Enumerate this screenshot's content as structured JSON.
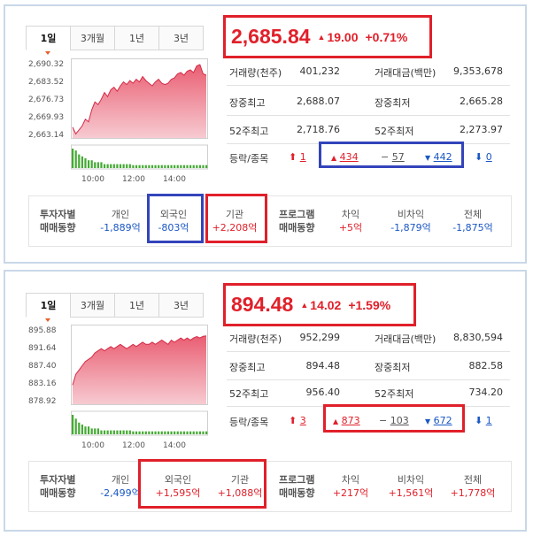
{
  "tabs": [
    "1일",
    "3개월",
    "1년",
    "3년"
  ],
  "panels": [
    {
      "price": "2,685.84",
      "change": "19.00",
      "change_pct": "+0.71%",
      "y_ticks": [
        "2,690.32",
        "2,683.52",
        "2,676.73",
        "2,669.93",
        "2,663.14"
      ],
      "x_ticks": [
        "10:00",
        "12:00",
        "14:00"
      ],
      "stats": {
        "volume_label": "거래량(천주)",
        "volume": "401,232",
        "amount_label": "거래대금(백만)",
        "amount": "9,353,678",
        "high_label": "장중최고",
        "high": "2,688.07",
        "low_label": "장중최저",
        "low": "2,665.28",
        "w52_high_label": "52주최고",
        "w52_high": "2,718.76",
        "w52_low_label": "52주최저",
        "w52_low": "2,273.97"
      },
      "updown": {
        "label": "등락/종목",
        "upper_limit": "1",
        "up": "434",
        "flat": "57",
        "down": "442",
        "lower_limit": "0"
      },
      "investors": {
        "header_line1": "투자자별",
        "header_line2": "매매동향",
        "individual_label": "개인",
        "individual": "-1,889억",
        "foreign_label": "외국인",
        "foreign": "-803억",
        "institution_label": "기관",
        "institution": "+2,208억"
      },
      "program": {
        "header_line1": "프로그램",
        "header_line2": "매매동향",
        "arb_label": "차익",
        "arb": "+5억",
        "nonarb_label": "비차익",
        "nonarb": "-1,879억",
        "total_label": "전체",
        "total": "-1,875억"
      },
      "chart_data": {
        "type": "area",
        "y_range": [
          2663.14,
          2690.32
        ],
        "values": [
          2666.5,
          2664.0,
          2665.5,
          2667.0,
          2669.5,
          2668.5,
          2673.0,
          2676.0,
          2675.0,
          2677.0,
          2679.5,
          2678.0,
          2680.5,
          2681.5,
          2680.0,
          2682.0,
          2683.5,
          2682.5,
          2684.0,
          2683.0,
          2684.5,
          2683.5,
          2685.5,
          2684.0,
          2683.0,
          2682.0,
          2683.5,
          2684.5,
          2683.0,
          2682.5,
          2683.0,
          2684.5,
          2685.0,
          2686.5,
          2687.0,
          2686.0,
          2687.5,
          2688.0,
          2687.0,
          2689.5,
          2690.0,
          2686.5,
          2686.0
        ],
        "volume": [
          10,
          9,
          7,
          6,
          5,
          4,
          4,
          3,
          3,
          3,
          2,
          2,
          2,
          2,
          2,
          2,
          2,
          2,
          2,
          1.5,
          1.5,
          1.5,
          1.5,
          1.5,
          1.5,
          1.5,
          1.5,
          1.5,
          1.5,
          1.5,
          1.5,
          1.5,
          1.5,
          1.5,
          1.5,
          1.5,
          1.5,
          1.5,
          1.5,
          1.5,
          1.5,
          1.5,
          1.5
        ]
      }
    },
    {
      "price": "894.48",
      "change": "14.02",
      "change_pct": "+1.59%",
      "y_ticks": [
        "895.88",
        "891.64",
        "887.40",
        "883.16",
        "878.92"
      ],
      "x_ticks": [
        "10:00",
        "12:00",
        "14:00"
      ],
      "stats": {
        "volume_label": "거래량(천주)",
        "volume": "952,299",
        "amount_label": "거래대금(백만)",
        "amount": "8,830,594",
        "high_label": "장중최고",
        "high": "894.48",
        "low_label": "장중최저",
        "low": "882.58",
        "w52_high_label": "52주최고",
        "w52_high": "956.40",
        "w52_low_label": "52주최저",
        "w52_low": "734.20"
      },
      "updown": {
        "label": "등락/종목",
        "upper_limit": "3",
        "up": "873",
        "flat": "103",
        "down": "672",
        "lower_limit": "1"
      },
      "investors": {
        "header_line1": "투자자별",
        "header_line2": "매매동향",
        "individual_label": "개인",
        "individual": "-2,499억",
        "foreign_label": "외국인",
        "foreign": "+1,595억",
        "institution_label": "기관",
        "institution": "+1,088억"
      },
      "program": {
        "header_line1": "프로그램",
        "header_line2": "매매동향",
        "arb_label": "차익",
        "arb": "+217억",
        "nonarb_label": "비차익",
        "nonarb": "+1,561억",
        "total_label": "전체",
        "total": "+1,778억"
      },
      "chart_data": {
        "type": "area",
        "y_range": [
          878.92,
          895.88
        ],
        "values": [
          883.0,
          885.5,
          886.5,
          887.5,
          888.5,
          889.0,
          889.5,
          890.5,
          891.0,
          891.5,
          891.0,
          891.5,
          892.0,
          891.5,
          892.0,
          892.5,
          892.0,
          891.5,
          892.0,
          892.5,
          892.0,
          892.5,
          893.0,
          892.5,
          892.5,
          893.0,
          892.5,
          893.0,
          893.5,
          893.0,
          892.5,
          893.5,
          893.0,
          893.5,
          894.0,
          893.5,
          894.0,
          893.5,
          894.0,
          894.3,
          894.0,
          894.4,
          894.5
        ],
        "volume": [
          10,
          8,
          6,
          5,
          4,
          4,
          3,
          3,
          3,
          2,
          2,
          2,
          2,
          2,
          2,
          2,
          2,
          2,
          2,
          1.5,
          1.5,
          1.5,
          1.5,
          1.5,
          1.5,
          1.5,
          1.5,
          1.5,
          1.5,
          1.5,
          1.5,
          1.5,
          1.5,
          1.5,
          1.5,
          1.5,
          1.5,
          1.5,
          1.5,
          1.5,
          1.5,
          1.5,
          1.5
        ]
      }
    }
  ],
  "colors": {
    "up": "#e0202a",
    "down": "#1a57c4",
    "volume": "#44aa33",
    "highlight_blue": "#3344bb"
  }
}
